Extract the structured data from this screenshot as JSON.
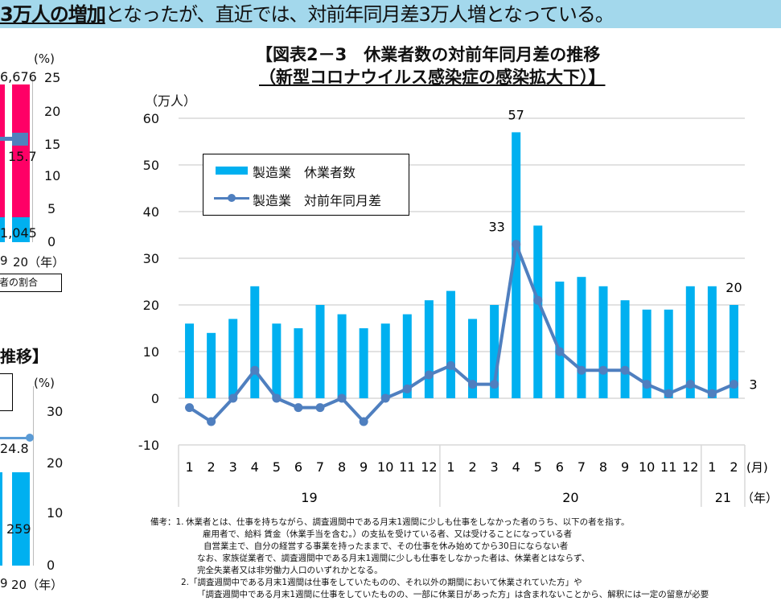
{
  "banner": {
    "bold": "3万人の増加",
    "rest": "となったが、直近では、対前年同月差3万人増となっている。"
  },
  "left_top_chart": {
    "unit": "(%)",
    "ticks": [
      "25",
      "20",
      "15",
      "10",
      "5",
      "0"
    ],
    "label_top": "6,676",
    "label_line": "15.7",
    "label_bottom": "1,045",
    "x_labels": [
      "9",
      "20（年）"
    ],
    "legend_fragment": "者の割合",
    "colors": {
      "bar_top": "#ff0066",
      "bar_bottom": "#00b0f0",
      "line": "#4f81bd"
    }
  },
  "left_bottom_chart": {
    "title_fragment": "推移】",
    "unit": "(%)",
    "ticks": [
      "30",
      "20",
      "10",
      "0"
    ],
    "label_line": "24.8",
    "label_bar": "259",
    "x_labels": [
      "9",
      "20（年）"
    ]
  },
  "chart_data": {
    "type": "bar+line",
    "title": "【図表2－3　休業者数の対前年同月差の推移",
    "subtitle": "（新型コロナウイルス感染症の感染拡大下）】",
    "ylabel": "（万人）",
    "ylim": [
      -10,
      60
    ],
    "yticks": [
      "60",
      "50",
      "40",
      "30",
      "20",
      "10",
      "0",
      "-10"
    ],
    "grid": true,
    "legend_placement": "top-left",
    "categories": [
      "1",
      "2",
      "3",
      "4",
      "5",
      "6",
      "7",
      "8",
      "9",
      "10",
      "11",
      "12",
      "1",
      "2",
      "3",
      "4",
      "5",
      "6",
      "7",
      "8",
      "9",
      "10",
      "11",
      "12",
      "1",
      "2"
    ],
    "month_unit": "(月)",
    "years": [
      {
        "label": "19",
        "count": 12
      },
      {
        "label": "20",
        "count": 12
      },
      {
        "label": "21",
        "count": 2
      }
    ],
    "year_unit": "（年）",
    "series": [
      {
        "name": "製造業　休業者数",
        "type": "bar",
        "color": "#00b0f0",
        "values": [
          16,
          14,
          17,
          24,
          16,
          15,
          20,
          18,
          15,
          16,
          18,
          21,
          23,
          17,
          20,
          57,
          37,
          25,
          26,
          24,
          21,
          19,
          19,
          24,
          24,
          20
        ]
      },
      {
        "name": "製造業　対前年同月差",
        "type": "line",
        "color": "#4f7fbf",
        "values": [
          -2,
          -5,
          0,
          6,
          0,
          -2,
          -2,
          0,
          -5,
          0,
          2,
          5,
          7,
          3,
          3,
          33,
          21,
          10,
          6,
          6,
          6,
          3,
          1,
          3,
          1,
          3
        ]
      }
    ],
    "data_labels": {
      "bar_peak": "57",
      "line_peak": "33",
      "bar_last": "20",
      "line_last": "3"
    }
  },
  "notes": {
    "prefix": "備考：1.",
    "lines": [
      "休業者とは、仕事を持ちながら、調査週間中である月末1週間に少しも仕事をしなかった者のうち、以下の者を指す。",
      "雇用者で、給料 賃金（休業手当を含む。）の支払を受けている者、又は受けることになっている者",
      "自営業主で、自分の経営する事業を持ったままで、その仕事を休み始めてから30日にならない者",
      "なお、家族従業者で、調査週間中である月末1週間に少しも仕事をしなかった者は、休業者とはならず、",
      "完全失業者又は非労働力人口のいずれかとなる。",
      "2.「調査週間中である月末1週間は仕事をしていたものの、それ以外の期間において休業されていた方」や",
      "「調査週間中である月末1週間に仕事をしていたものの、一部に休業日があった方」は含まれないことから、解釈には一定の留意が必要"
    ]
  }
}
